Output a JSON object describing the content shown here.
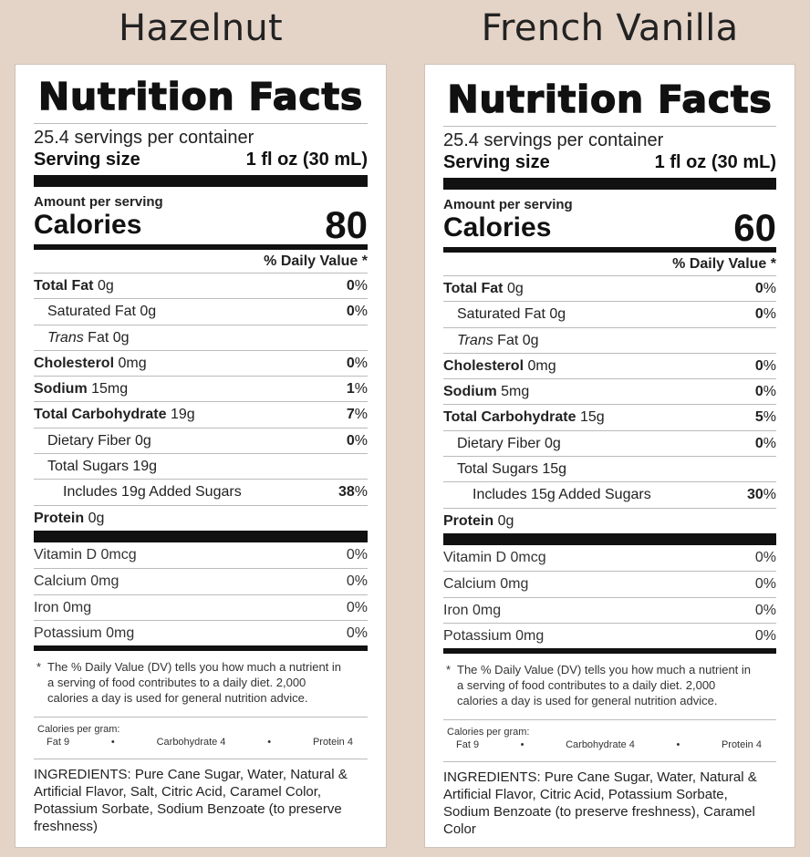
{
  "labels": [
    {
      "flavor": "Hazelnut",
      "title": "Nutrition Facts",
      "servings_per_container": "25.4 servings per container",
      "serving_size_label": "Serving size",
      "serving_size_value": "1 fl oz (30 mL)",
      "amount_per_serving": "Amount per serving",
      "calories_label": "Calories",
      "calories_value": "80",
      "daily_value_header": "% Daily Value *",
      "nutrients": [
        {
          "name": "Total Fat",
          "amount": "0g",
          "pct": "0",
          "pct_suffix": "%"
        },
        {
          "name": "Saturated Fat 0g",
          "amount": "",
          "pct": "0",
          "pct_suffix": "%"
        },
        {
          "name": "Trans",
          "amount": "Fat 0g",
          "pct": "",
          "pct_suffix": ""
        },
        {
          "name": "Cholesterol",
          "amount": "0mg",
          "pct": "0",
          "pct_suffix": "%"
        },
        {
          "name": "Sodium",
          "amount": "15mg",
          "pct": "1",
          "pct_suffix": "%"
        },
        {
          "name": "Total Carbohydrate",
          "amount": "19g",
          "pct": "7",
          "pct_suffix": "%"
        },
        {
          "name": "Dietary Fiber 0g",
          "amount": "",
          "pct": "0",
          "pct_suffix": "%"
        },
        {
          "name": "Total Sugars 19g",
          "amount": "",
          "pct": "",
          "pct_suffix": ""
        },
        {
          "name": "Includes 19g Added Sugars",
          "amount": "",
          "pct": "38",
          "pct_suffix": "%"
        },
        {
          "name": "Protein",
          "amount": "0g",
          "pct": "",
          "pct_suffix": ""
        }
      ],
      "vitamins": [
        {
          "name": "Vitamin D 0mcg",
          "pct": "0%"
        },
        {
          "name": "Calcium 0mg",
          "pct": "0%"
        },
        {
          "name": "Iron 0mg",
          "pct": "0%"
        },
        {
          "name": "Potassium 0mg",
          "pct": "0%"
        }
      ],
      "footnote_star": "*",
      "footnote": "The % Daily Value (DV) tells you how much a nutrient in a serving of food contributes to a daily diet. 2,000 calories a day is used for general nutrition advice.",
      "calories_per_gram_title": "Calories per gram:",
      "calories_per_gram": [
        "Fat 9",
        "•",
        "Carbohydrate 4",
        "•",
        "Protein 4"
      ],
      "ingredients": "INGREDIENTS: Pure Cane Sugar, Water, Natural & Artificial Flavor, Salt, Citric Acid, Caramel Color, Potassium Sorbate, Sodium Benzoate (to preserve freshness)"
    },
    {
      "flavor": "French Vanilla",
      "title": "Nutrition Facts",
      "servings_per_container": "25.4 servings per container",
      "serving_size_label": "Serving size",
      "serving_size_value": "1 fl oz (30 mL)",
      "amount_per_serving": "Amount per serving",
      "calories_label": "Calories",
      "calories_value": "60",
      "daily_value_header": "% Daily Value *",
      "nutrients": [
        {
          "name": "Total Fat",
          "amount": "0g",
          "pct": "0",
          "pct_suffix": "%"
        },
        {
          "name": "Saturated Fat 0g",
          "amount": "",
          "pct": "0",
          "pct_suffix": "%"
        },
        {
          "name": "Trans",
          "amount": "Fat 0g",
          "pct": "",
          "pct_suffix": ""
        },
        {
          "name": "Cholesterol",
          "amount": "0mg",
          "pct": "0",
          "pct_suffix": "%"
        },
        {
          "name": "Sodium",
          "amount": "5mg",
          "pct": "0",
          "pct_suffix": "%"
        },
        {
          "name": "Total Carbohydrate",
          "amount": "15g",
          "pct": "5",
          "pct_suffix": "%"
        },
        {
          "name": "Dietary Fiber 0g",
          "amount": "",
          "pct": "0",
          "pct_suffix": "%"
        },
        {
          "name": "Total Sugars 15g",
          "amount": "",
          "pct": "",
          "pct_suffix": ""
        },
        {
          "name": "Includes 15g Added Sugars",
          "amount": "",
          "pct": "30",
          "pct_suffix": "%"
        },
        {
          "name": "Protein",
          "amount": "0g",
          "pct": "",
          "pct_suffix": ""
        }
      ],
      "vitamins": [
        {
          "name": "Vitamin D 0mcg",
          "pct": "0%"
        },
        {
          "name": "Calcium 0mg",
          "pct": "0%"
        },
        {
          "name": "Iron 0mg",
          "pct": "0%"
        },
        {
          "name": "Potassium 0mg",
          "pct": "0%"
        }
      ],
      "footnote_star": "*",
      "footnote": "The % Daily Value (DV) tells you how much a nutrient in a serving of food contributes to a daily diet. 2,000 calories a day is used for general nutrition advice.",
      "calories_per_gram_title": "Calories per gram:",
      "calories_per_gram": [
        "Fat 9",
        "•",
        "Carbohydrate 4",
        "•",
        "Protein 4"
      ],
      "ingredients": "INGREDIENTS: Pure Cane Sugar, Water, Natural & Artificial Flavor, Citric Acid, Potassium Sorbate, Sodium Benzoate (to preserve freshness), Caramel Color"
    }
  ]
}
